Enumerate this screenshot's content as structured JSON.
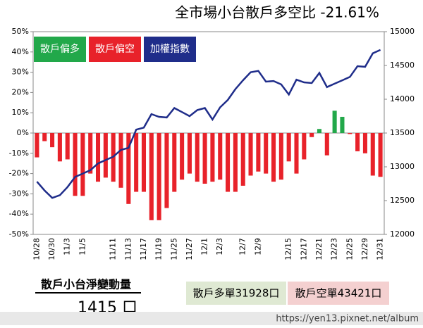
{
  "chart_data": {
    "type": "bar",
    "title": "全市場小台散戶多空比  -21.61%",
    "categories": [
      "10/28",
      null,
      "10/30",
      null,
      "11/3",
      null,
      "11/5",
      null,
      null,
      null,
      "11/11",
      null,
      "11/13",
      null,
      "11/17",
      null,
      "11/19",
      null,
      "11/25",
      null,
      "11/27",
      null,
      "12/1",
      null,
      "12/3",
      null,
      null,
      "12/7",
      null,
      "12/9",
      null,
      null,
      null,
      "12/15",
      null,
      "12/17",
      null,
      "12/21",
      null,
      "12/23",
      null,
      "12/25",
      null,
      "12/29",
      null,
      "12/31"
    ],
    "series": [
      {
        "name": "散戶偏多",
        "color": "#22a84a",
        "values": [
          null,
          null,
          null,
          null,
          null,
          null,
          null,
          null,
          null,
          null,
          null,
          null,
          null,
          null,
          null,
          null,
          null,
          null,
          null,
          null,
          null,
          null,
          null,
          null,
          null,
          null,
          null,
          null,
          null,
          null,
          null,
          null,
          null,
          null,
          null,
          null,
          null,
          2,
          null,
          11,
          8,
          null,
          null,
          null,
          null,
          null
        ]
      },
      {
        "name": "散戶偏空",
        "color": "#e8222a",
        "values": [
          -12,
          -4,
          -7,
          -14,
          -13,
          -31,
          -31,
          -20,
          -24,
          -22,
          -24,
          -27,
          -35,
          -29,
          -29,
          -43,
          -43,
          -37,
          -29,
          -23,
          -20,
          -24,
          -25,
          -24,
          -23,
          -29,
          -29,
          -26,
          -21,
          -19,
          -20,
          -24,
          -23,
          -14,
          -20,
          -13,
          -2,
          null,
          -11,
          null,
          null,
          -0.5,
          -9,
          -10,
          -21,
          -21.61
        ]
      },
      {
        "name": "加權指數",
        "color": "#1f2d8a",
        "type": "line",
        "axis": "y2",
        "values": [
          12780,
          12650,
          12540,
          12580,
          12700,
          12850,
          12900,
          12950,
          13050,
          13100,
          13150,
          13250,
          13280,
          13550,
          13580,
          13780,
          13740,
          13730,
          13870,
          13810,
          13750,
          13840,
          13870,
          13700,
          13880,
          13990,
          14150,
          14280,
          14400,
          14420,
          14260,
          14270,
          14220,
          14070,
          14290,
          14250,
          14240,
          14390,
          14180,
          14230,
          14280,
          14330,
          14490,
          14480,
          14680,
          14730
        ]
      }
    ],
    "ylim": [
      -50,
      50
    ],
    "yticks": [
      {
        "value": -50,
        "label": "-50%"
      },
      {
        "value": -40,
        "label": "-40%"
      },
      {
        "value": -30,
        "label": "-30%"
      },
      {
        "value": -20,
        "label": "-20%"
      },
      {
        "value": -10,
        "label": "-10%"
      },
      {
        "value": 0,
        "label": "0%"
      },
      {
        "value": 10,
        "label": "10%"
      },
      {
        "value": 20,
        "label": "20%"
      },
      {
        "value": 30,
        "label": "30%"
      },
      {
        "value": 40,
        "label": "40%"
      },
      {
        "value": 50,
        "label": "50%"
      }
    ],
    "y2lim": [
      12000,
      15000
    ],
    "y2ticks": [
      12000,
      12500,
      13000,
      13500,
      14000,
      14500,
      15000
    ]
  },
  "footer": {
    "net_label": "散戶小台淨變動量",
    "net_value": "1415 口",
    "long": "散戶多單31928口",
    "short": "散戶空單43421口",
    "watermark": "https://yen13.pixnet.net/album"
  }
}
